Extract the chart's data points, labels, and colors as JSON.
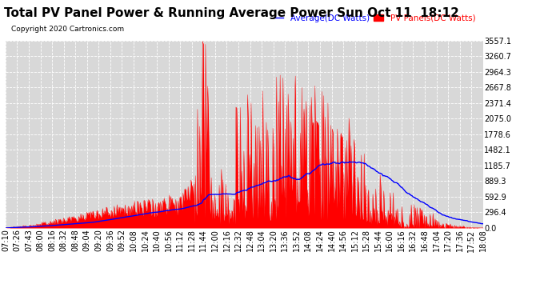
{
  "title": "Total PV Panel Power & Running Average Power Sun Oct 11  18:12",
  "copyright": "Copyright 2020 Cartronics.com",
  "legend_avg": "Average(DC Watts)",
  "legend_pv": "PV Panels(DC Watts)",
  "yticks": [
    0.0,
    296.4,
    592.9,
    889.3,
    1185.7,
    1482.1,
    1778.6,
    2075.0,
    2371.4,
    2667.8,
    2964.3,
    3260.7,
    3557.1
  ],
  "ymax": 3557.1,
  "bg_color": "#ffffff",
  "plot_bg_color": "#d8d8d8",
  "grid_color": "#ffffff",
  "pv_fill_color": "#ff0000",
  "pv_line_color": "#ff0000",
  "avg_line_color": "#0000ff",
  "title_fontsize": 11,
  "tick_fontsize": 7
}
